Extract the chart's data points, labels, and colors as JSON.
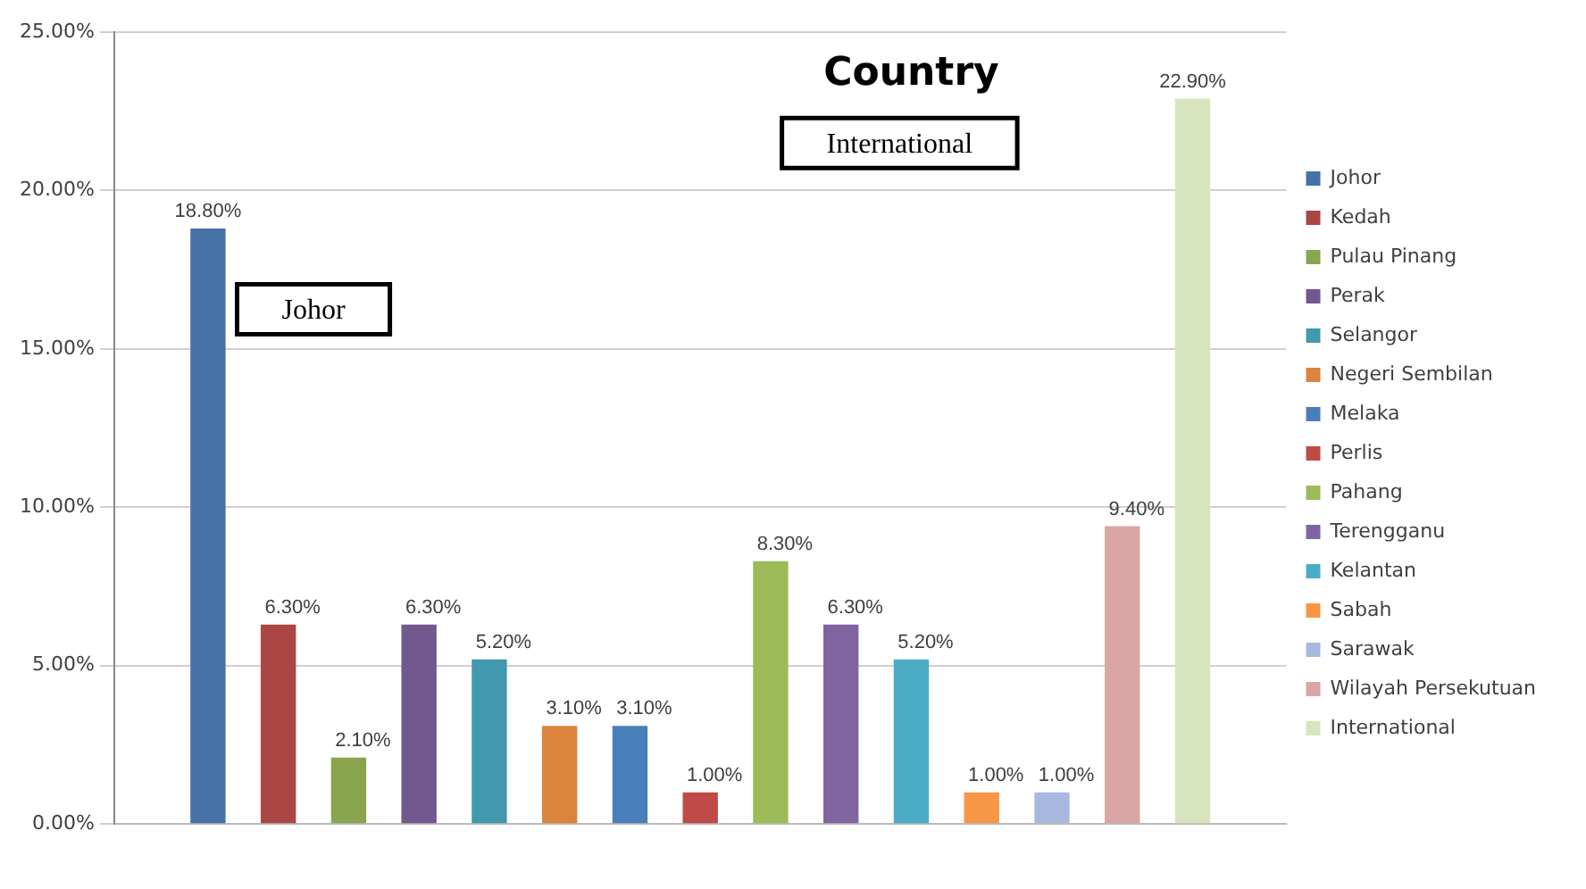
{
  "chart_data": {
    "type": "bar",
    "title": "Country",
    "categories": [
      null
    ],
    "series": [
      {
        "name": "Johor",
        "color": "#4572a7",
        "values": [
          18.8
        ],
        "value_labels": [
          "18.80%"
        ]
      },
      {
        "name": "Kedah",
        "color": "#aa4643",
        "values": [
          6.3
        ],
        "value_labels": [
          "6.30%"
        ]
      },
      {
        "name": "Pulau Pinang",
        "color": "#89a54e",
        "values": [
          2.1
        ],
        "value_labels": [
          "2.10%"
        ]
      },
      {
        "name": "Perak",
        "color": "#71588f",
        "values": [
          6.3
        ],
        "value_labels": [
          "6.30%"
        ]
      },
      {
        "name": "Selangor",
        "color": "#4198af",
        "values": [
          5.2
        ],
        "value_labels": [
          "5.20%"
        ]
      },
      {
        "name": "Negeri Sembilan",
        "color": "#db843d",
        "values": [
          3.1
        ],
        "value_labels": [
          "3.10%"
        ]
      },
      {
        "name": "Melaka",
        "color": "#4a7ebb",
        "values": [
          3.1
        ],
        "value_labels": [
          "3.10%"
        ]
      },
      {
        "name": "Perlis",
        "color": "#be4b48",
        "values": [
          1.0
        ],
        "value_labels": [
          "1.00%"
        ]
      },
      {
        "name": "Pahang",
        "color": "#9bbb59",
        "values": [
          8.3
        ],
        "value_labels": [
          "8.30%"
        ]
      },
      {
        "name": "Terengganu",
        "color": "#8064a2",
        "values": [
          6.3
        ],
        "value_labels": [
          "6.30%"
        ]
      },
      {
        "name": "Kelantan",
        "color": "#4bacc6",
        "values": [
          5.2
        ],
        "value_labels": [
          "5.20%"
        ]
      },
      {
        "name": "Sabah",
        "color": "#f79646",
        "values": [
          1.0
        ],
        "value_labels": [
          "1.00%"
        ]
      },
      {
        "name": "Sarawak",
        "color": "#a7b9df",
        "values": [
          1.0
        ],
        "value_labels": [
          "1.00%"
        ]
      },
      {
        "name": "Wilayah Persekutuan",
        "color": "#d9a5a5",
        "values": [
          9.4
        ],
        "value_labels": [
          "9.40%"
        ]
      },
      {
        "name": "International",
        "color": "#d7e4bd",
        "values": [
          22.9
        ],
        "value_labels": [
          "22.90%"
        ]
      }
    ],
    "annotations": [
      "Johor",
      "International"
    ],
    "ylim": [
      0,
      25
    ],
    "yticks": [
      {
        "value": 0,
        "label": "0.00%"
      },
      {
        "value": 5,
        "label": "5.00%"
      },
      {
        "value": 10,
        "label": "10.00%"
      },
      {
        "value": 15,
        "label": "15.00%"
      },
      {
        "value": 20,
        "label": "20.00%"
      },
      {
        "value": 25,
        "label": "25.00%"
      }
    ],
    "grid": "y",
    "legend": "right"
  }
}
